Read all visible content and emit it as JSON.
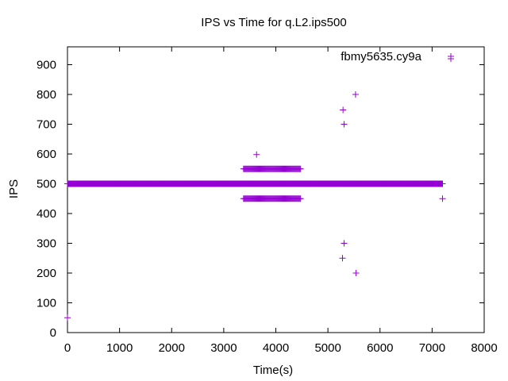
{
  "chart_data": {
    "type": "scatter",
    "title": "IPS vs Time for q.L2.ips500",
    "xlabel": "Time(s)",
    "ylabel": "IPS",
    "xlim": [
      0,
      8000
    ],
    "ylim": [
      0,
      960
    ],
    "xticks": [
      0,
      1000,
      2000,
      3000,
      4000,
      5000,
      6000,
      7000,
      8000
    ],
    "yticks": [
      0,
      100,
      200,
      300,
      400,
      500,
      600,
      700,
      800,
      900
    ],
    "grid": false,
    "legend_position": "top-right",
    "marker": "+",
    "colors": {
      "series": "#9400D3",
      "axes": "#000000"
    },
    "series": [
      {
        "name": "fbmy5635.cy9a",
        "segments": [
          {
            "x_start": 0,
            "x_end": 7200,
            "y": 500,
            "step": 10
          },
          {
            "x_start": 3380,
            "x_end": 4480,
            "y": 550,
            "step": 15
          },
          {
            "x_start": 3380,
            "x_end": 4480,
            "y": 450,
            "step": 15
          }
        ],
        "points": [
          {
            "x": 0,
            "y": 50
          },
          {
            "x": 3630,
            "y": 598
          },
          {
            "x": 5290,
            "y": 748
          },
          {
            "x": 5310,
            "y": 700
          },
          {
            "x": 5530,
            "y": 800
          },
          {
            "x": 5310,
            "y": 300
          },
          {
            "x": 5280,
            "y": 250
          },
          {
            "x": 5540,
            "y": 200
          },
          {
            "x": 7200,
            "y": 450
          },
          {
            "x": 7360,
            "y": 920
          }
        ]
      }
    ]
  }
}
